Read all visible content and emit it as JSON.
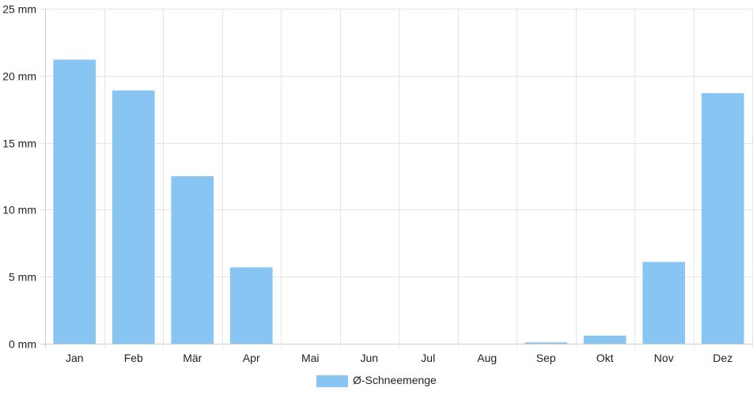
{
  "chart_data": {
    "type": "bar",
    "categories": [
      "Jan",
      "Feb",
      "Mär",
      "Apr",
      "Mai",
      "Jun",
      "Jul",
      "Aug",
      "Sep",
      "Okt",
      "Nov",
      "Dez"
    ],
    "series": [
      {
        "name": "Ø-Schneemenge",
        "values": [
          21.2,
          18.9,
          12.5,
          5.7,
          0,
          0,
          0,
          0,
          0.1,
          0.6,
          6.1,
          18.7
        ],
        "color": "#88c5f2"
      }
    ],
    "y_ticks": [
      0,
      5,
      10,
      15,
      20,
      25
    ],
    "y_tick_labels": [
      "0 mm",
      "5 mm",
      "10 mm",
      "15 mm",
      "20 mm",
      "25 mm"
    ],
    "ylim": [
      0,
      25
    ],
    "grid": true,
    "legend_position": "bottom",
    "colors": {
      "bar": "#88c5f2",
      "grid": "#e5e5e5",
      "axis": "#cfcfcf",
      "text": "#222222"
    }
  }
}
